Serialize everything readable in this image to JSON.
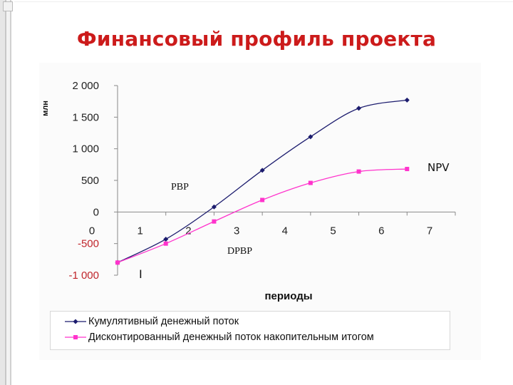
{
  "slide": {
    "title": "Финансовый профиль проекта"
  },
  "chart_data": {
    "type": "line",
    "x": [
      0,
      1,
      2,
      3,
      4,
      5,
      6
    ],
    "xticks": [
      "0",
      "1",
      "2",
      "3",
      "4",
      "5",
      "6",
      "7"
    ],
    "yticks": [
      "2 000",
      "1 500",
      "1 000",
      "500",
      "0",
      "-500",
      "-1 000"
    ],
    "xlim": [
      0,
      7
    ],
    "ylim": [
      -1000,
      2000
    ],
    "xlabel": "периоды",
    "ylabel": "млн",
    "series": [
      {
        "name": "Кумулятивный денежный поток",
        "values": [
          -800,
          -430,
          80,
          660,
          1190,
          1640,
          1770
        ],
        "color": "#1c1c6e",
        "marker": "diamond"
      },
      {
        "name": "Дисконтированный денежный поток накопительным итогом",
        "values": [
          -800,
          -500,
          -150,
          190,
          460,
          640,
          680
        ],
        "color": "#ff33cc",
        "marker": "square"
      }
    ],
    "annotations": [
      "PBP",
      "DPBP",
      "NPV",
      "I"
    ],
    "legend_position": "bottom",
    "grid": false
  },
  "colors": {
    "title": "#cc1b1b",
    "negative_tick": "#c0252b",
    "positive_tick": "#222222"
  }
}
